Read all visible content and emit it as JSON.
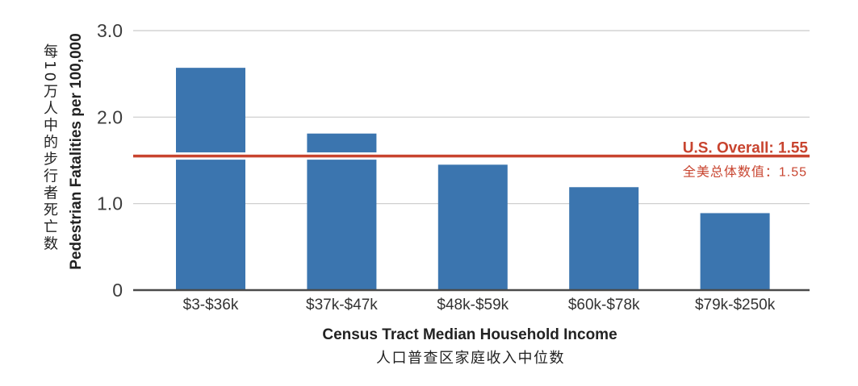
{
  "chart_data": {
    "type": "bar",
    "categories": [
      "$3-$36k",
      "$37k-$47k",
      "$48k-$59k",
      "$60k-$78k",
      "$79k-$250k"
    ],
    "values": [
      2.57,
      1.81,
      1.45,
      1.19,
      0.89
    ],
    "xlabel": "Census Tract Median Household Income",
    "xlabel_zh": "人口普查区家庭收入中位数",
    "ylabel": "Pedestrian Fatalities per 100,000",
    "ylabel_zh": "每10万人中的步行者死亡数",
    "ylim": [
      0,
      3.0
    ],
    "yticks": [
      0,
      1,
      2,
      3
    ],
    "ytick_labels": [
      "0",
      "1.0",
      "2.0",
      "3.0"
    ],
    "grid": true,
    "legend": false,
    "reference_line": {
      "value": 1.55,
      "label": "U.S. Overall: 1.55",
      "label_zh": "全美总体数值：1.55"
    },
    "colors": {
      "bar": "#3b75af",
      "reference": "#c8442f",
      "grid": "#c9c9c9",
      "axis": "#4a4a4a"
    }
  }
}
